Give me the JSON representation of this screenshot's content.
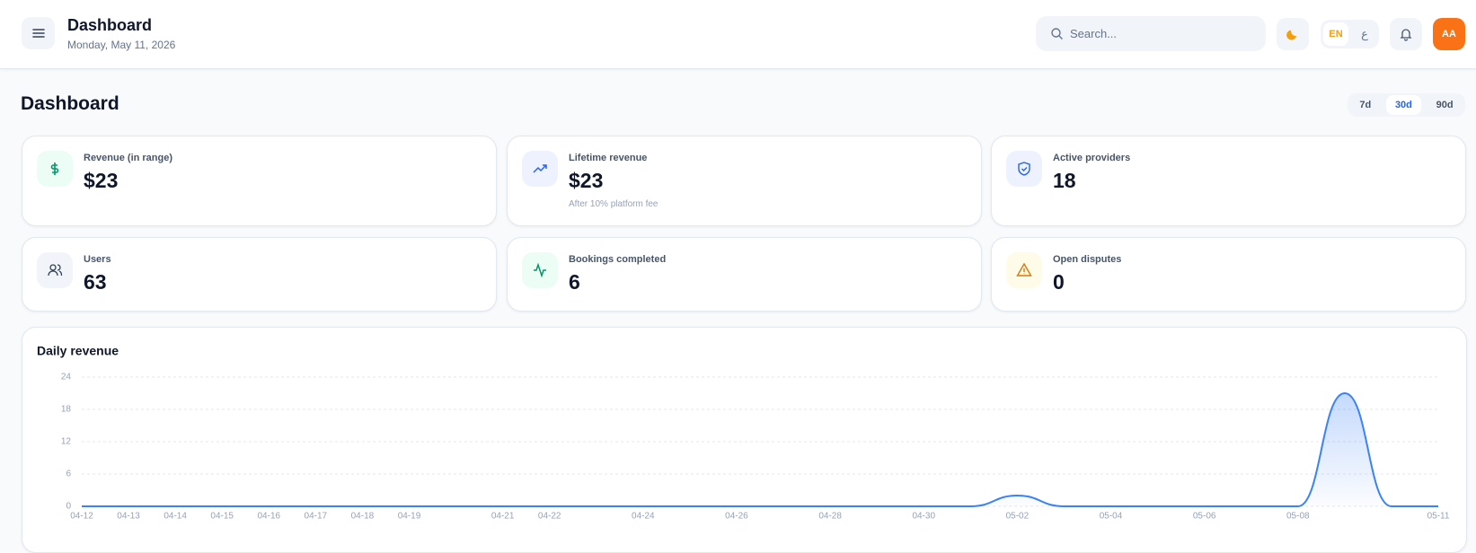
{
  "header": {
    "title": "Dashboard",
    "date": "Monday, May 11, 2026",
    "search_placeholder": "Search...",
    "languages": [
      "EN",
      "ع"
    ],
    "avatar": "AA"
  },
  "page": {
    "title": "Dashboard",
    "ranges": [
      "7d",
      "30d",
      "90d"
    ],
    "active_range": 1
  },
  "stats": [
    {
      "label": "Revenue (in range)",
      "value": "$23"
    },
    {
      "label": "Lifetime revenue",
      "value": "$23",
      "note": "After 10% platform fee"
    },
    {
      "label": "Active providers",
      "value": "18"
    },
    {
      "label": "Users",
      "value": "63"
    },
    {
      "label": "Bookings completed",
      "value": "6"
    },
    {
      "label": "Open disputes",
      "value": "0"
    }
  ],
  "chart_data": {
    "type": "area",
    "title": "Daily revenue",
    "categories": [
      "04-12",
      "04-13",
      "04-14",
      "04-15",
      "04-16",
      "04-17",
      "04-18",
      "04-19",
      null,
      "04-21",
      "04-22",
      null,
      "04-24",
      null,
      "04-26",
      null,
      "04-28",
      null,
      "04-30",
      null,
      "05-02",
      null,
      "05-04",
      null,
      "05-06",
      null,
      "05-08",
      null,
      null,
      "05-11"
    ],
    "values": [
      0,
      0,
      0,
      0,
      0,
      0,
      0,
      0,
      0,
      0,
      0,
      0,
      0,
      0,
      0,
      0,
      0,
      0,
      0,
      0,
      2,
      0,
      0,
      0,
      0,
      0,
      0,
      21,
      0,
      0
    ],
    "color": "#3b82f6",
    "ylim": [
      0,
      24
    ],
    "yticks": [
      0,
      6,
      12,
      18,
      24
    ],
    "grid": true
  }
}
